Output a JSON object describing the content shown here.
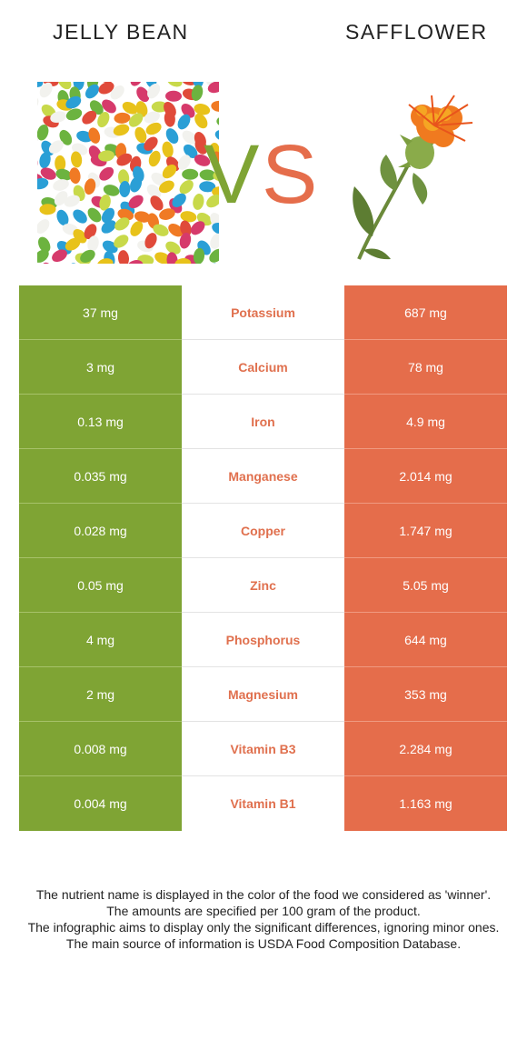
{
  "header": {
    "left_title": "JELLY BEAN",
    "right_title": "SAFFLOWER",
    "vs_left": "V",
    "vs_right": "S"
  },
  "colors": {
    "jelly_bean": "#7fa434",
    "safflower": "#e56d4b",
    "nutrient_winner": "#e0704e"
  },
  "rows": [
    {
      "left": "37 mg",
      "nutrient": "Potassium",
      "right": "687 mg"
    },
    {
      "left": "3 mg",
      "nutrient": "Calcium",
      "right": "78 mg"
    },
    {
      "left": "0.13 mg",
      "nutrient": "Iron",
      "right": "4.9 mg"
    },
    {
      "left": "0.035 mg",
      "nutrient": "Manganese",
      "right": "2.014 mg"
    },
    {
      "left": "0.028 mg",
      "nutrient": "Copper",
      "right": "1.747 mg"
    },
    {
      "left": "0.05 mg",
      "nutrient": "Zinc",
      "right": "5.05 mg"
    },
    {
      "left": "4 mg",
      "nutrient": "Phosphorus",
      "right": "644 mg"
    },
    {
      "left": "2 mg",
      "nutrient": "Magnesium",
      "right": "353 mg"
    },
    {
      "left": "0.008 mg",
      "nutrient": "Vitamin B3",
      "right": "2.284 mg"
    },
    {
      "left": "0.004 mg",
      "nutrient": "Vitamin B1",
      "right": "1.163 mg"
    }
  ],
  "footnote": {
    "line1": "The nutrient name is displayed in the color of the food we considered as 'winner'.",
    "line2": "The amounts are specified per 100 gram of the product.",
    "line3": "The infographic aims to display only the significant differences, ignoring minor ones.",
    "line4": "The main source of information is USDA Food Composition Database."
  }
}
